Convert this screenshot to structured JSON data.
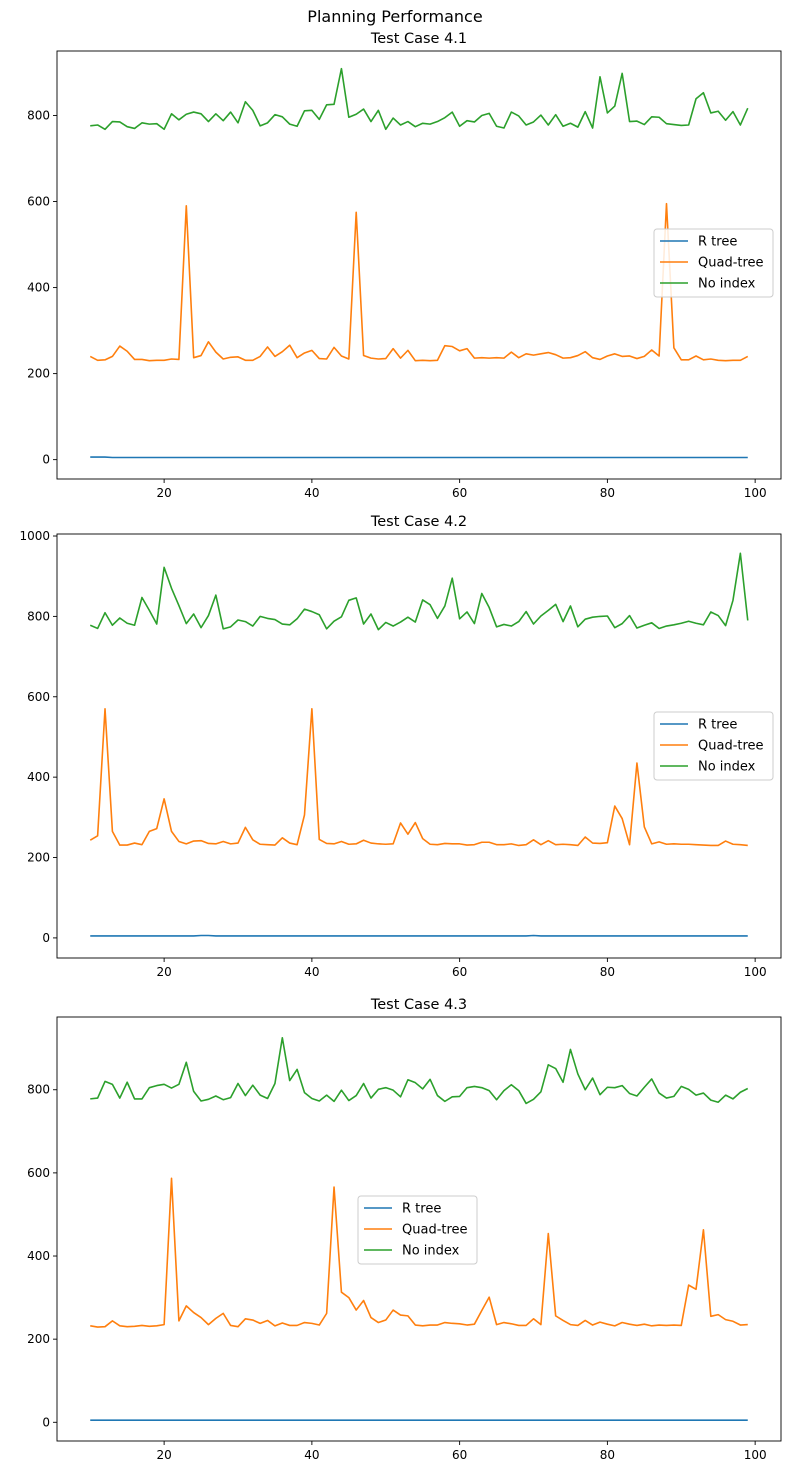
{
  "figure": {
    "suptitle": "Planning Performance"
  },
  "chart_data": [
    {
      "type": "line",
      "title": "Test Case 4.1",
      "xlabel": "",
      "ylabel": "",
      "xlim": [
        5.5,
        103.5
      ],
      "ylim": [
        -45,
        950
      ],
      "xticks": [
        20,
        40,
        60,
        80,
        100
      ],
      "yticks": [
        0,
        200,
        400,
        600,
        800
      ],
      "grid": false,
      "legend": "center-right",
      "x": [
        10,
        11,
        12,
        13,
        14,
        15,
        16,
        17,
        18,
        19,
        20,
        21,
        22,
        23,
        24,
        25,
        26,
        27,
        28,
        29,
        30,
        31,
        32,
        33,
        34,
        35,
        36,
        37,
        38,
        39,
        40,
        41,
        42,
        43,
        44,
        45,
        46,
        47,
        48,
        49,
        50,
        51,
        52,
        53,
        54,
        55,
        56,
        57,
        58,
        59,
        60,
        61,
        62,
        63,
        64,
        65,
        66,
        67,
        68,
        69,
        70,
        71,
        72,
        73,
        74,
        75,
        76,
        77,
        78,
        79,
        80,
        81,
        82,
        83,
        84,
        85,
        86,
        87,
        88,
        89,
        90,
        91,
        92,
        93,
        94,
        95,
        96,
        97,
        98,
        99
      ],
      "series": [
        {
          "name": "R tree",
          "color": "#1f77b4",
          "values": [
            6,
            6,
            6,
            5,
            5,
            5,
            5,
            5,
            5,
            5,
            5,
            5,
            5,
            5,
            5,
            5,
            5,
            5,
            5,
            5,
            5,
            5,
            5,
            5,
            5,
            5,
            5,
            5,
            5,
            5,
            5,
            5,
            5,
            5,
            5,
            5,
            5,
            5,
            5,
            5,
            5,
            5,
            5,
            5,
            5,
            5,
            5,
            5,
            5,
            5,
            5,
            5,
            5,
            5,
            5,
            5,
            5,
            5,
            5,
            5,
            5,
            5,
            5,
            5,
            5,
            5,
            5,
            5,
            5,
            5,
            5,
            5,
            5,
            5,
            5,
            5,
            5,
            5,
            5,
            5,
            5,
            5,
            5,
            5,
            5,
            5,
            5,
            5,
            5,
            5
          ]
        },
        {
          "name": "Quad-tree",
          "color": "#ff7f0e",
          "values": [
            240,
            231,
            232,
            240,
            264,
            252,
            233,
            233,
            230,
            231,
            231,
            234,
            233,
            590,
            237,
            242,
            274,
            250,
            234,
            238,
            239,
            231,
            231,
            240,
            262,
            240,
            251,
            266,
            237,
            248,
            254,
            235,
            234,
            261,
            241,
            234,
            575,
            242,
            236,
            234,
            235,
            258,
            236,
            254,
            230,
            231,
            230,
            231,
            265,
            263,
            253,
            258,
            236,
            237,
            236,
            237,
            236,
            250,
            237,
            246,
            243,
            246,
            249,
            244,
            236,
            237,
            242,
            251,
            237,
            233,
            241,
            246,
            240,
            241,
            235,
            240,
            255,
            241,
            595,
            260,
            232,
            232,
            241,
            232,
            234,
            231,
            230,
            231,
            231,
            240
          ]
        },
        {
          "name": "No index",
          "color": "#2ca02c",
          "values": [
            776,
            778,
            768,
            786,
            785,
            774,
            770,
            783,
            780,
            781,
            768,
            804,
            790,
            803,
            808,
            804,
            786,
            804,
            788,
            808,
            783,
            832,
            812,
            776,
            783,
            802,
            797,
            780,
            775,
            811,
            812,
            791,
            825,
            826,
            909,
            796,
            803,
            815,
            786,
            812,
            768,
            794,
            778,
            786,
            774,
            782,
            780,
            786,
            795,
            808,
            775,
            788,
            785,
            800,
            805,
            775,
            771,
            808,
            799,
            778,
            785,
            801,
            778,
            802,
            775,
            782,
            773,
            809,
            771,
            890,
            806,
            822,
            898,
            786,
            787,
            779,
            797,
            796,
            781,
            779,
            777,
            778,
            839,
            853,
            806,
            810,
            789,
            809,
            778,
            817
          ]
        }
      ]
    },
    {
      "type": "line",
      "title": "Test Case 4.2",
      "xlabel": "",
      "ylabel": "",
      "xlim": [
        5.5,
        103.5
      ],
      "ylim": [
        -50,
        1005
      ],
      "xticks": [
        20,
        40,
        60,
        80,
        100
      ],
      "yticks": [
        0,
        200,
        400,
        600,
        800,
        1000
      ],
      "grid": false,
      "legend": "center-right",
      "x": [
        10,
        11,
        12,
        13,
        14,
        15,
        16,
        17,
        18,
        19,
        20,
        21,
        22,
        23,
        24,
        25,
        26,
        27,
        28,
        29,
        30,
        31,
        32,
        33,
        34,
        35,
        36,
        37,
        38,
        39,
        40,
        41,
        42,
        43,
        44,
        45,
        46,
        47,
        48,
        49,
        50,
        51,
        52,
        53,
        54,
        55,
        56,
        57,
        58,
        59,
        60,
        61,
        62,
        63,
        64,
        65,
        66,
        67,
        68,
        69,
        70,
        71,
        72,
        73,
        74,
        75,
        76,
        77,
        78,
        79,
        80,
        81,
        82,
        83,
        84,
        85,
        86,
        87,
        88,
        89,
        90,
        91,
        92,
        93,
        94,
        95,
        96,
        97,
        98,
        99
      ],
      "series": [
        {
          "name": "R tree",
          "color": "#1f77b4",
          "values": [
            5,
            5,
            5,
            5,
            5,
            5,
            5,
            5,
            5,
            5,
            5,
            5,
            5,
            5,
            5,
            6,
            6,
            5,
            5,
            5,
            5,
            5,
            5,
            5,
            5,
            5,
            5,
            5,
            5,
            5,
            5,
            5,
            5,
            5,
            5,
            5,
            5,
            5,
            5,
            5,
            5,
            5,
            5,
            5,
            5,
            5,
            5,
            5,
            5,
            5,
            5,
            5,
            5,
            5,
            5,
            5,
            5,
            5,
            5,
            5,
            6,
            5,
            5,
            5,
            5,
            5,
            5,
            5,
            5,
            5,
            5,
            5,
            5,
            5,
            5,
            5,
            5,
            5,
            5,
            5,
            5,
            5,
            5,
            5,
            5,
            5,
            5,
            5,
            5,
            5
          ]
        },
        {
          "name": "Quad-tree",
          "color": "#ff7f0e",
          "values": [
            243,
            254,
            570,
            265,
            231,
            231,
            236,
            232,
            265,
            272,
            346,
            265,
            240,
            234,
            241,
            242,
            235,
            234,
            240,
            234,
            236,
            275,
            244,
            233,
            232,
            231,
            249,
            236,
            232,
            306,
            570,
            245,
            235,
            234,
            240,
            233,
            234,
            243,
            236,
            234,
            233,
            234,
            286,
            258,
            287,
            247,
            233,
            232,
            235,
            234,
            234,
            231,
            232,
            238,
            238,
            232,
            232,
            234,
            230,
            232,
            244,
            232,
            242,
            232,
            233,
            232,
            230,
            251,
            236,
            235,
            237,
            328,
            297,
            232,
            435,
            276,
            234,
            239,
            233,
            234,
            233,
            233,
            232,
            231,
            230,
            230,
            241,
            233,
            232,
            230
          ]
        },
        {
          "name": "No index",
          "color": "#2ca02c",
          "values": [
            778,
            770,
            809,
            778,
            796,
            783,
            778,
            847,
            815,
            781,
            922,
            870,
            827,
            782,
            806,
            772,
            802,
            853,
            769,
            774,
            791,
            787,
            776,
            800,
            795,
            792,
            781,
            779,
            794,
            818,
            812,
            804,
            769,
            788,
            799,
            840,
            846,
            781,
            806,
            767,
            785,
            776,
            786,
            798,
            786,
            841,
            829,
            795,
            826,
            895,
            794,
            811,
            782,
            857,
            822,
            774,
            780,
            776,
            787,
            812,
            781,
            801,
            815,
            830,
            787,
            826,
            774,
            793,
            798,
            800,
            801,
            772,
            782,
            802,
            771,
            778,
            784,
            770,
            776,
            779,
            783,
            788,
            783,
            779,
            811,
            802,
            777,
            840,
            957,
            790
          ]
        }
      ]
    },
    {
      "type": "line",
      "title": "Test Case 4.3",
      "xlabel": "",
      "ylabel": "",
      "xlim": [
        5.5,
        103.5
      ],
      "ylim": [
        -45,
        975
      ],
      "xticks": [
        20,
        40,
        60,
        80,
        100
      ],
      "yticks": [
        0,
        200,
        400,
        600,
        800
      ],
      "grid": false,
      "legend": "center",
      "x": [
        10,
        11,
        12,
        13,
        14,
        15,
        16,
        17,
        18,
        19,
        20,
        21,
        22,
        23,
        24,
        25,
        26,
        27,
        28,
        29,
        30,
        31,
        32,
        33,
        34,
        35,
        36,
        37,
        38,
        39,
        40,
        41,
        42,
        43,
        44,
        45,
        46,
        47,
        48,
        49,
        50,
        51,
        52,
        53,
        54,
        55,
        56,
        57,
        58,
        59,
        60,
        61,
        62,
        63,
        64,
        65,
        66,
        67,
        68,
        69,
        70,
        71,
        72,
        73,
        74,
        75,
        76,
        77,
        78,
        79,
        80,
        81,
        82,
        83,
        84,
        85,
        86,
        87,
        88,
        89,
        90,
        91,
        92,
        93,
        94,
        95,
        96,
        97,
        98,
        99
      ],
      "series": [
        {
          "name": "R tree",
          "color": "#1f77b4",
          "values": [
            5,
            5,
            5,
            5,
            5,
            5,
            5,
            5,
            5,
            5,
            5,
            5,
            5,
            5,
            5,
            5,
            5,
            5,
            5,
            5,
            5,
            5,
            5,
            5,
            5,
            5,
            5,
            5,
            5,
            5,
            5,
            5,
            5,
            5,
            5,
            5,
            5,
            5,
            5,
            5,
            5,
            5,
            5,
            5,
            5,
            5,
            5,
            5,
            5,
            5,
            5,
            5,
            5,
            5,
            5,
            5,
            5,
            5,
            5,
            5,
            5,
            5,
            5,
            5,
            5,
            5,
            5,
            5,
            5,
            5,
            5,
            5,
            5,
            5,
            5,
            5,
            5,
            5,
            5,
            5,
            5,
            5,
            5,
            5,
            5,
            5,
            5,
            5,
            5,
            5
          ]
        },
        {
          "name": "Quad-tree",
          "color": "#ff7f0e",
          "values": [
            232,
            229,
            230,
            244,
            232,
            230,
            231,
            233,
            231,
            232,
            235,
            587,
            244,
            280,
            264,
            252,
            235,
            250,
            262,
            233,
            230,
            249,
            246,
            238,
            245,
            232,
            239,
            233,
            233,
            240,
            238,
            234,
            262,
            566,
            313,
            300,
            270,
            293,
            252,
            240,
            246,
            270,
            258,
            256,
            234,
            232,
            234,
            234,
            240,
            238,
            237,
            234,
            236,
            269,
            301,
            235,
            240,
            237,
            233,
            233,
            249,
            235,
            454,
            256,
            245,
            235,
            233,
            245,
            234,
            241,
            236,
            232,
            240,
            236,
            233,
            236,
            232,
            234,
            233,
            234,
            233,
            330,
            320,
            463,
            255,
            259,
            247,
            243,
            234,
            235
          ]
        },
        {
          "name": "No index",
          "color": "#2ca02c",
          "values": [
            778,
            780,
            820,
            813,
            780,
            818,
            778,
            778,
            805,
            810,
            813,
            804,
            813,
            866,
            796,
            773,
            777,
            785,
            776,
            781,
            815,
            786,
            811,
            787,
            779,
            815,
            925,
            822,
            849,
            793,
            779,
            773,
            787,
            772,
            799,
            774,
            786,
            815,
            780,
            801,
            805,
            799,
            783,
            824,
            817,
            802,
            825,
            786,
            772,
            783,
            784,
            805,
            808,
            805,
            798,
            776,
            798,
            812,
            798,
            767,
            777,
            795,
            860,
            851,
            818,
            897,
            838,
            800,
            828,
            788,
            806,
            805,
            810,
            791,
            785,
            806,
            826,
            792,
            780,
            784,
            808,
            801,
            787,
            792,
            775,
            770,
            787,
            778,
            794,
            803
          ]
        }
      ]
    }
  ]
}
